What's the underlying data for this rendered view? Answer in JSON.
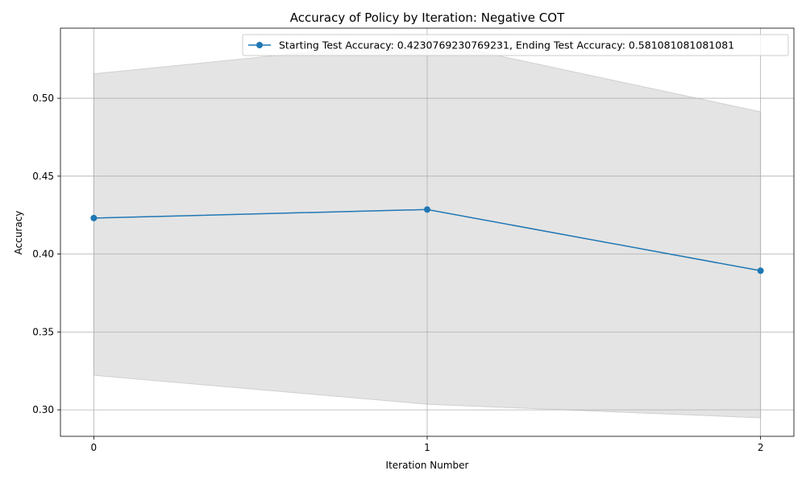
{
  "chart_data": {
    "type": "line",
    "title": "Accuracy of Policy by Iteration: Negative COT",
    "xlabel": "Iteration Number",
    "ylabel": "Accuracy",
    "x": [
      0,
      1,
      2
    ],
    "x_ticks": [
      "0",
      "1",
      "2"
    ],
    "y_ticks": [
      "0.30",
      "0.35",
      "0.40",
      "0.45",
      "0.50"
    ],
    "xlim": [
      -0.1,
      2.1
    ],
    "ylim": [
      0.283,
      0.545
    ],
    "grid": true,
    "legend_position": "upper right",
    "series": [
      {
        "name": "Starting Test Accuracy: 0.4230769230769231, Ending Test Accuracy: 0.581081081081081",
        "values": [
          0.4231,
          0.4286,
          0.3893
        ],
        "band_upper": [
          0.5157,
          0.5371,
          0.4913
        ],
        "band_lower": [
          0.3222,
          0.3036,
          0.2949
        ],
        "line_color": "#1f77b4",
        "band_color": "#e4e4e4"
      }
    ]
  }
}
